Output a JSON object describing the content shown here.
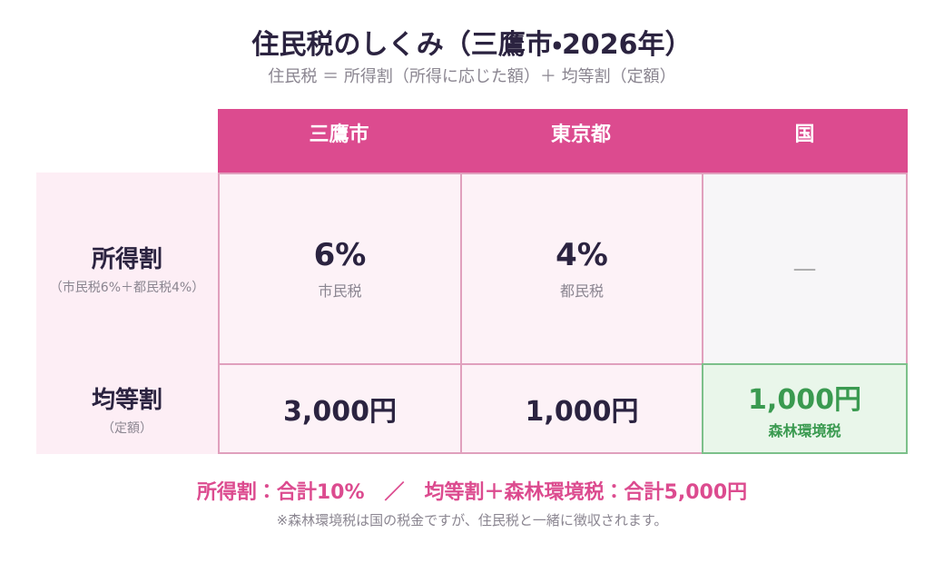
{
  "header": {
    "title": "住民税のしくみ（三鷹市・2026年）",
    "subtitle": "住民税 ＝ 所得割（所得に応じた額）＋ 均等割（定額）"
  },
  "table": {
    "columns": [
      "三鷹市",
      "東京都",
      "国"
    ],
    "rows": [
      {
        "label": "所得割",
        "sublabel": "（市民税6%＋都民税4%）",
        "cells": [
          {
            "value": "6%",
            "note": "市民税"
          },
          {
            "value": "4%",
            "note": "都民税"
          },
          {
            "value": "—"
          }
        ]
      },
      {
        "label": "均等割",
        "sublabel": "（定額）",
        "cells": [
          {
            "value": "3,000円"
          },
          {
            "value": "1,000円"
          },
          {
            "value": "1,000円",
            "note": "森林環境税"
          }
        ]
      }
    ]
  },
  "footer": {
    "summary": "所得割：合計10%　／　均等割＋森林環境税：合計5,000円",
    "note": "※森林環境税は国の税金ですが、住民税と一緒に徴収されます。"
  }
}
